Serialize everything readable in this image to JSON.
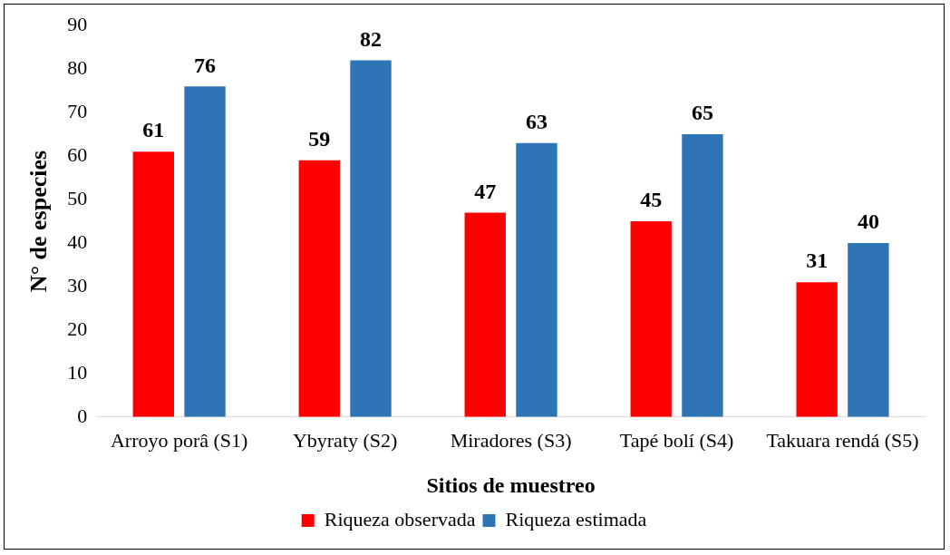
{
  "chart_data": {
    "type": "bar",
    "xlabel": "Sitios de muestreo",
    "ylabel": "N° de especies",
    "categories": [
      "Arroyo porâ (S1)",
      "Ybyraty (S2)",
      "Miradores (S3)",
      "Tapé bolí (S4)",
      "Takuara rendá (S5)"
    ],
    "series": [
      {
        "name": "Riqueza observada",
        "color": "#ff0000",
        "values": [
          61,
          59,
          47,
          45,
          31
        ]
      },
      {
        "name": "Riqueza estimada",
        "color": "#2e75b6",
        "values": [
          76,
          82,
          63,
          65,
          40
        ]
      }
    ],
    "ylim": [
      0,
      90
    ],
    "yticks": [
      0,
      10,
      20,
      30,
      40,
      50,
      60,
      70,
      80,
      90
    ],
    "grid": false,
    "legend": "bottom",
    "data_labels": true
  }
}
